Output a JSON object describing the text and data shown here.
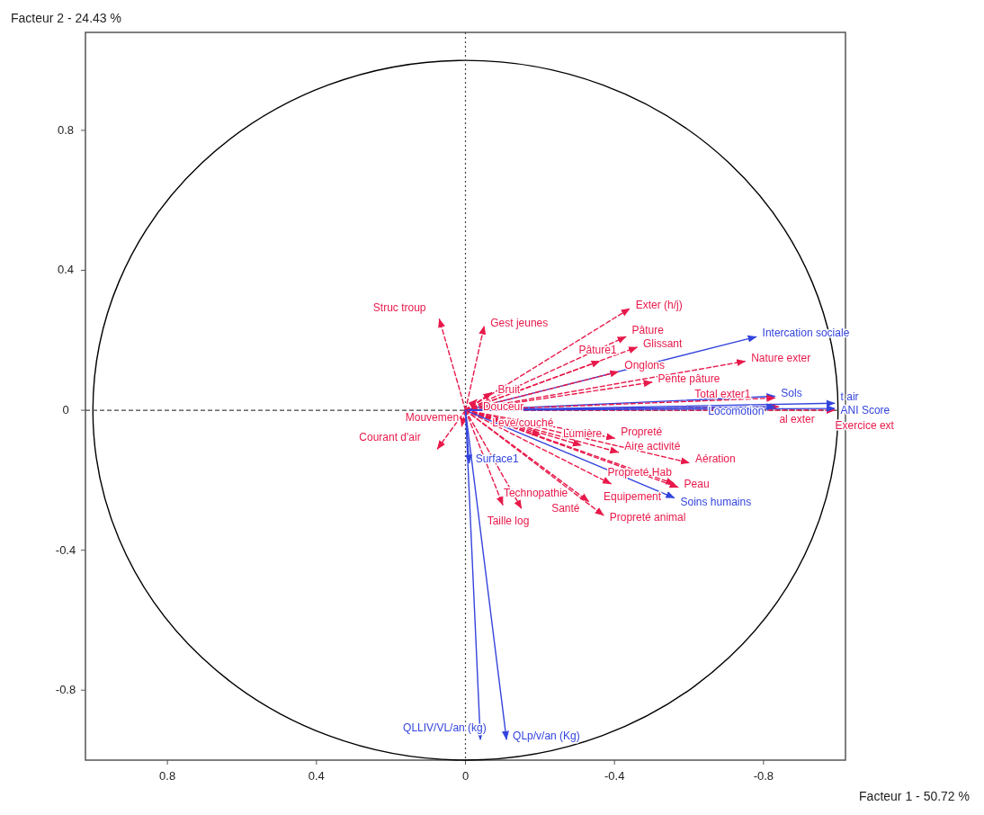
{
  "chart_data": {
    "type": "line",
    "xlabel": "Facteur 1  -  50.72 %",
    "ylabel": "Facteur 2  -  24.43 %",
    "xlim": [
      1.02,
      -1.02
    ],
    "ylim": [
      -1.0,
      1.08
    ],
    "xticks": [
      0.8,
      0.4,
      0,
      -0.4,
      -0.8
    ],
    "yticks": [
      -0.8,
      -0.4,
      0,
      0.4,
      0.8
    ],
    "ref_lines": [
      {
        "axis": "x",
        "value": 0,
        "color": "#444444",
        "line_style": "dotted"
      },
      {
        "axis": "y",
        "value": 0,
        "color": "#444444",
        "line_style": "dashed"
      }
    ],
    "series": [
      {
        "name": "Struc troup",
        "color": "#e8194a",
        "line_style": "dashed",
        "x": [
          0,
          0.07
        ],
        "values": [
          0,
          0.26
        ]
      },
      {
        "name": "Gest jeunes",
        "color": "#e8194a",
        "line_style": "dashed",
        "x": [
          0,
          -0.05
        ],
        "values": [
          0,
          0.24
        ]
      },
      {
        "name": "Exter (h/j)",
        "color": "#e8194a",
        "line_style": "dashed",
        "x": [
          0,
          -0.44
        ],
        "values": [
          0,
          0.29
        ]
      },
      {
        "name": "Pâture",
        "color": "#e8194a",
        "line_style": "dashed",
        "x": [
          0,
          -0.43
        ],
        "values": [
          0,
          0.21
        ]
      },
      {
        "name": "Glissant",
        "color": "#e8194a",
        "line_style": "dashed",
        "x": [
          0,
          -0.46
        ],
        "values": [
          0,
          0.18
        ]
      },
      {
        "name": "Nature exter",
        "color": "#e8194a",
        "line_style": "dashed",
        "x": [
          0,
          -0.75
        ],
        "values": [
          0,
          0.14
        ]
      },
      {
        "name": "Intercation sociale",
        "color": "#3344dd",
        "line_style": "solid",
        "x": [
          0,
          -0.78
        ],
        "values": [
          0,
          0.21
        ]
      },
      {
        "name": "Pâture1",
        "color": "#e8194a",
        "line_style": "dashed",
        "x": [
          0,
          -0.36
        ],
        "values": [
          0,
          0.14
        ]
      },
      {
        "name": "Onglons",
        "color": "#e8194a",
        "line_style": "dashed",
        "x": [
          0,
          -0.41
        ],
        "values": [
          0,
          0.11
        ]
      },
      {
        "name": "Sols",
        "color": "#3344dd",
        "line_style": "solid",
        "x": [
          0,
          -0.83
        ],
        "values": [
          0,
          0.04
        ]
      },
      {
        "name": "Exercice ext",
        "color": "#e8194a",
        "line_style": "dashed",
        "x": [
          0,
          -0.99
        ],
        "values": [
          0,
          0.0
        ]
      },
      {
        "name": "Bruit",
        "color": "#e8194a",
        "line_style": "dashed",
        "x": [
          0,
          -0.07
        ],
        "values": [
          0,
          0.05
        ]
      },
      {
        "name": "Pente pâture",
        "color": "#e8194a",
        "line_style": "dashed",
        "x": [
          0,
          -0.5
        ],
        "values": [
          0,
          0.08
        ]
      },
      {
        "name": "Total exter1",
        "color": "#e8194a",
        "line_style": "dashed",
        "x": [
          0,
          -0.83
        ],
        "values": [
          0,
          0.035
        ]
      },
      {
        "name": "al exter",
        "color": "#e8194a",
        "line_style": "dashed",
        "x": [
          0,
          -0.84
        ],
        "values": [
          0,
          0.01
        ]
      },
      {
        "name": "t air",
        "color": "#3344dd",
        "line_style": "solid",
        "x": [
          0,
          -0.99
        ],
        "values": [
          0,
          0.02
        ]
      },
      {
        "name": "Douceur",
        "color": "#e8194a",
        "line_style": "dashed",
        "x": [
          0,
          -0.03
        ],
        "values": [
          0,
          0.03
        ]
      },
      {
        "name": "Propreté",
        "color": "#e8194a",
        "line_style": "dashed",
        "x": [
          0,
          -0.4
        ],
        "values": [
          0,
          -0.08
        ]
      },
      {
        "name": "Aire activité",
        "color": "#e8194a",
        "line_style": "dashed",
        "x": [
          0,
          -0.41
        ],
        "values": [
          0,
          -0.12
        ]
      },
      {
        "name": "Locomotion",
        "color": "#3344dd",
        "line_style": "solid",
        "x": [
          0,
          -0.83
        ],
        "values": [
          0,
          0.01
        ]
      },
      {
        "name": "ANI Score",
        "color": "#3344dd",
        "line_style": "solid",
        "x": [
          0,
          -0.99
        ],
        "values": [
          0,
          0.005
        ]
      },
      {
        "name": "Lumière",
        "color": "#e8194a",
        "line_style": "dashed",
        "x": [
          0,
          -0.31
        ],
        "values": [
          0,
          -0.1
        ]
      },
      {
        "name": "Aération",
        "color": "#e8194a",
        "line_style": "dashed",
        "x": [
          0,
          -0.6
        ],
        "values": [
          0,
          -0.15
        ]
      },
      {
        "name": "Levé/couché",
        "color": "#e8194a",
        "line_style": "dashed",
        "x": [
          0,
          -0.2
        ],
        "values": [
          0,
          -0.07
        ]
      },
      {
        "name": "Propreté Hab",
        "color": "#e8194a",
        "line_style": "dashed",
        "x": [
          0,
          -0.56
        ],
        "values": [
          0,
          -0.21
        ]
      },
      {
        "name": "Peau",
        "color": "#e8194a",
        "line_style": "dashed",
        "x": [
          0,
          -0.57
        ],
        "values": [
          0,
          -0.22
        ]
      },
      {
        "name": "Courant d'air",
        "color": "#e8194a",
        "line_style": "dashed",
        "x": [
          0,
          0.075
        ],
        "values": [
          0,
          -0.11
        ]
      },
      {
        "name": "Mouvemen",
        "color": "#e8194a",
        "line_style": "dashed",
        "x": [
          0,
          0.01
        ],
        "values": [
          0,
          -0.045
        ]
      },
      {
        "name": "Surface1",
        "color": "#3344dd",
        "line_style": "solid",
        "x": [
          0,
          -0.01
        ],
        "values": [
          0,
          -0.15
        ]
      },
      {
        "name": "Equipement",
        "color": "#e8194a",
        "line_style": "dashed",
        "x": [
          0,
          -0.39
        ],
        "values": [
          0,
          -0.21
        ]
      },
      {
        "name": "Soins humains",
        "color": "#3344dd",
        "line_style": "solid",
        "x": [
          0,
          -0.56
        ],
        "values": [
          0,
          -0.25
        ]
      },
      {
        "name": "Taille log",
        "color": "#e8194a",
        "line_style": "dashed",
        "x": [
          0,
          -0.15
        ],
        "values": [
          0,
          -0.28
        ]
      },
      {
        "name": "Santé",
        "color": "#e8194a",
        "line_style": "dashed",
        "x": [
          0,
          -0.33
        ],
        "values": [
          0,
          -0.26
        ]
      },
      {
        "name": "Propreté animal",
        "color": "#e8194a",
        "line_style": "dashed",
        "x": [
          0,
          -0.37
        ],
        "values": [
          0,
          -0.3
        ]
      },
      {
        "name": "Technopathie",
        "color": "#e8194a",
        "line_style": "dashed",
        "x": [
          0,
          -0.1
        ],
        "values": [
          0,
          -0.27
        ]
      },
      {
        "name": "QLLIV/VL/an (kg)",
        "color": "#3344dd",
        "line_style": "solid",
        "x": [
          0,
          -0.04
        ],
        "values": [
          0,
          -0.94
        ]
      },
      {
        "name": "QLp/v/an (Kg)",
        "color": "#3344dd",
        "line_style": "solid",
        "x": [
          0,
          -0.11
        ],
        "values": [
          0,
          -0.94
        ]
      }
    ]
  }
}
